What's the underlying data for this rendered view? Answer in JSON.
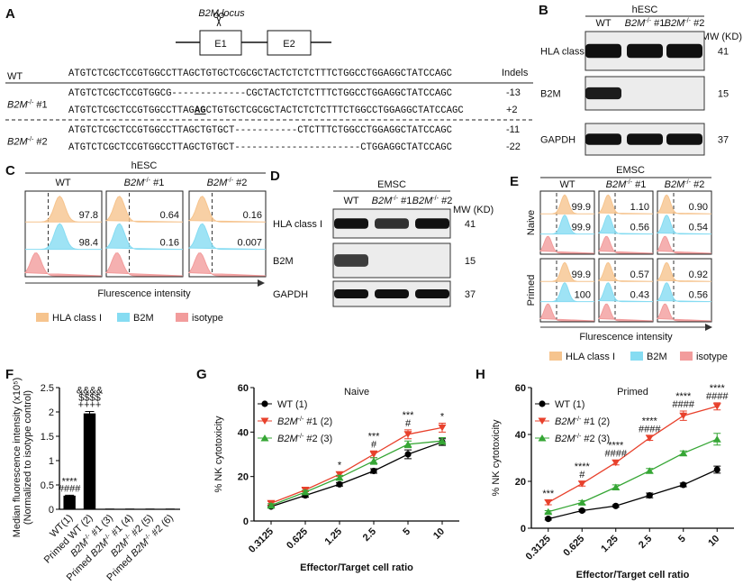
{
  "panel_a": {
    "label": "A",
    "locus": "B2M locus",
    "exons": [
      "E1",
      "E2"
    ],
    "indels_header": "Indels",
    "groups": [
      {
        "label": "WT",
        "rows": [
          {
            "seq": "ATGTCTCGCTCCGTGGCCTTAGCTGTGCTCGCGCTACTCTCTCTTTCTGGCCTGGAGGCTATCCAGC"
          }
        ]
      },
      {
        "label": "B2M-/- #1",
        "rows": [
          {
            "seq": "ATGTCTCGCTCCGTGGCG-------------CGCTACTCTCTCTTTCTGGCCTGGAGGCTATCCAGC",
            "indel": "-13"
          },
          {
            "seq_before": "ATGTCTCGCTCCGTGGCCTTAG",
            "insertion": "AG",
            "seq_after": "CTGTGCTCGCGCTACTCTCTCTTTCTGGCCTGGAGGCTATCCAGC",
            "indel": "+2"
          }
        ]
      },
      {
        "label": "B2M-/- #2",
        "rows": [
          {
            "seq": "ATGTCTCGCTCCGTGGCCTTAGCTGTGCT-----------CTCTTTCTGGCCTGGAGGCTATCCAGC",
            "indel": "-11"
          },
          {
            "seq": "ATGTCTCGCTCCGTGGCCTTAGCTGTGCT----------------------CTGGAGGCTATCCAGC",
            "indel": "-22"
          }
        ]
      }
    ]
  },
  "panel_b": {
    "label": "B",
    "cell": "hESC",
    "columns": [
      "WT",
      "B2M-/- #1",
      "B2M-/- #2"
    ],
    "mw_header": "MW (KD)",
    "rows": [
      {
        "name": "HLA class I",
        "mw": "41"
      },
      {
        "name": "B2M",
        "mw": "15"
      },
      {
        "name": "GAPDH",
        "mw": "37"
      }
    ]
  },
  "panel_c": {
    "label": "C",
    "cell": "hESC",
    "columns": [
      "WT",
      "B2M-/- #1",
      "B2M-/- #2"
    ],
    "values": [
      [
        "97.8",
        "98.4"
      ],
      [
        "0.64",
        "0.16"
      ],
      [
        "0.16",
        "0.007"
      ]
    ],
    "xlabel": "Flurescence intensity",
    "legend": [
      {
        "name": "HLA class I",
        "color": "#f6c48e"
      },
      {
        "name": "B2M",
        "color": "#86dcf2"
      },
      {
        "name": "isotype",
        "color": "#f29c9c"
      }
    ]
  },
  "panel_d": {
    "label": "D",
    "cell": "EMSC",
    "columns": [
      "WT",
      "B2M-/- #1",
      "B2M-/- #2"
    ],
    "mw_header": "MW (KD)",
    "rows": [
      {
        "name": "HLA class I",
        "mw": "41"
      },
      {
        "name": "B2M",
        "mw": "15"
      },
      {
        "name": "GAPDH",
        "mw": "37"
      }
    ]
  },
  "panel_e": {
    "label": "E",
    "cell": "EMSC",
    "columns": [
      "WT",
      "B2M-/- #1",
      "B2M-/- #2"
    ],
    "rows": [
      "Naive",
      "Primed"
    ],
    "values": [
      [
        [
          "99.9",
          "99.9"
        ],
        [
          "1.10",
          "0.56"
        ],
        [
          "0.90",
          "0.54"
        ]
      ],
      [
        [
          "99.9",
          "100"
        ],
        [
          "0.57",
          "0.43"
        ],
        [
          "0.92",
          "0.56"
        ]
      ]
    ],
    "xlabel": "Flurescence intensity",
    "legend": [
      {
        "name": "HLA class I",
        "color": "#f6c48e"
      },
      {
        "name": "B2M",
        "color": "#86dcf2"
      },
      {
        "name": "isotype",
        "color": "#f29c9c"
      }
    ]
  },
  "chart_data": [
    {
      "type": "bar",
      "label": "F",
      "ylabel": [
        "Median fluorescence intensity (x10⁵)",
        "(Normalized to isotype control)"
      ],
      "categories": [
        "WT(1)",
        "Primed WT (2)",
        "B2M-/- #1 (3)",
        "Primed B2M-/- #1 (4)",
        "B2M-/- #2 (5)",
        "Primed B2M-/- #2 (6)"
      ],
      "values": [
        0.28,
        1.97,
        0.004,
        0.004,
        0.004,
        0.004
      ],
      "errors": [
        0.01,
        0.04,
        0.001,
        0.001,
        0.001,
        0.001
      ],
      "color": "#000000",
      "ylim": [
        0,
        2.5
      ],
      "yticks": [
        0,
        0.5,
        1,
        1.5,
        2,
        2.5
      ],
      "annotations": [
        [
          {
            "text": "****",
            "color": "#e8412c"
          },
          {
            "text": "####",
            "color": "#e8412c"
          }
        ],
        [
          {
            "text": "&&&&",
            "color": "#e8412c"
          },
          {
            "text": "$$$$",
            "color": "#e8412c"
          },
          {
            "text": "++++",
            "color": "#e8412c"
          }
        ],
        [],
        [],
        [],
        []
      ]
    },
    {
      "type": "line",
      "label": "G",
      "title": "Naive",
      "xlabel": "Effector/Target cell ratio",
      "ylabel": "% NK cytotoxicity",
      "categories": [
        "0.3125",
        "0.625",
        "1.25",
        "2.5",
        "5",
        "10"
      ],
      "ylim": [
        0,
        60
      ],
      "yticks": [
        0,
        20,
        40,
        60
      ],
      "series": [
        {
          "name": "WT (1)",
          "color": "#000000",
          "marker": "circle",
          "values": [
            6.5,
            11.5,
            16.5,
            22.5,
            30,
            35.5
          ],
          "errors": [
            0.5,
            0.8,
            0.8,
            1,
            2,
            1.5
          ]
        },
        {
          "name": "B2M-/- #1 (2)",
          "color": "#e8412c",
          "marker": "triangle-down",
          "values": [
            8,
            14,
            21,
            30,
            39,
            42
          ],
          "errors": [
            0.8,
            0.8,
            1,
            1.5,
            2,
            2
          ]
        },
        {
          "name": "B2M-/- #2 (3)",
          "color": "#36a635",
          "marker": "triangle-up",
          "values": [
            7,
            13,
            19.5,
            27,
            34.5,
            36
          ],
          "errors": [
            0.8,
            0.8,
            1,
            1.5,
            1.5,
            1.5
          ]
        }
      ],
      "annotations": [
        [],
        [],
        [
          {
            "text": "*",
            "color": "#e8412c"
          }
        ],
        [
          {
            "text": "***",
            "color": "#e8412c"
          },
          {
            "text": "#",
            "color": "#36a635"
          }
        ],
        [
          {
            "text": "***",
            "color": "#e8412c"
          },
          {
            "text": "#",
            "color": "#36a635"
          }
        ],
        [
          {
            "text": "*",
            "color": "#e8412c"
          }
        ]
      ]
    },
    {
      "type": "line",
      "label": "H",
      "title": "Primed",
      "xlabel": "Effector/Target cell ratio",
      "ylabel": "% NK cytotoxicity",
      "categories": [
        "0.3125",
        "0.625",
        "1.25",
        "2.5",
        "5",
        "10"
      ],
      "ylim": [
        0,
        60
      ],
      "yticks": [
        0,
        20,
        40,
        60
      ],
      "series": [
        {
          "name": "WT (1)",
          "color": "#000000",
          "marker": "circle",
          "values": [
            4,
            7.5,
            9.5,
            14,
            18.5,
            25
          ],
          "errors": [
            0.5,
            0.5,
            0.5,
            1,
            0.8,
            1.5
          ]
        },
        {
          "name": "B2M-/- #1 (2)",
          "color": "#e8412c",
          "marker": "triangle-down",
          "values": [
            11,
            19,
            28,
            38.5,
            48,
            52
          ],
          "errors": [
            1,
            1,
            1,
            1,
            2,
            1.5
          ]
        },
        {
          "name": "B2M-/- #2 (3)",
          "color": "#36a635",
          "marker": "triangle-up",
          "values": [
            7,
            11,
            17.5,
            24.5,
            32,
            38
          ],
          "errors": [
            0.5,
            0.8,
            1,
            1,
            1,
            2.5
          ]
        }
      ],
      "annotations": [
        [
          {
            "text": "***",
            "color": "#e8412c"
          }
        ],
        [
          {
            "text": "****",
            "color": "#e8412c"
          },
          {
            "text": "#",
            "color": "#36a635"
          }
        ],
        [
          {
            "text": "****",
            "color": "#e8412c"
          },
          {
            "text": "####",
            "color": "#36a635"
          }
        ],
        [
          {
            "text": "****",
            "color": "#e8412c"
          },
          {
            "text": "####",
            "color": "#36a635"
          }
        ],
        [
          {
            "text": "****",
            "color": "#e8412c"
          },
          {
            "text": "####",
            "color": "#36a635"
          }
        ],
        [
          {
            "text": "****",
            "color": "#e8412c"
          },
          {
            "text": "####",
            "color": "#36a635"
          }
        ]
      ]
    }
  ]
}
